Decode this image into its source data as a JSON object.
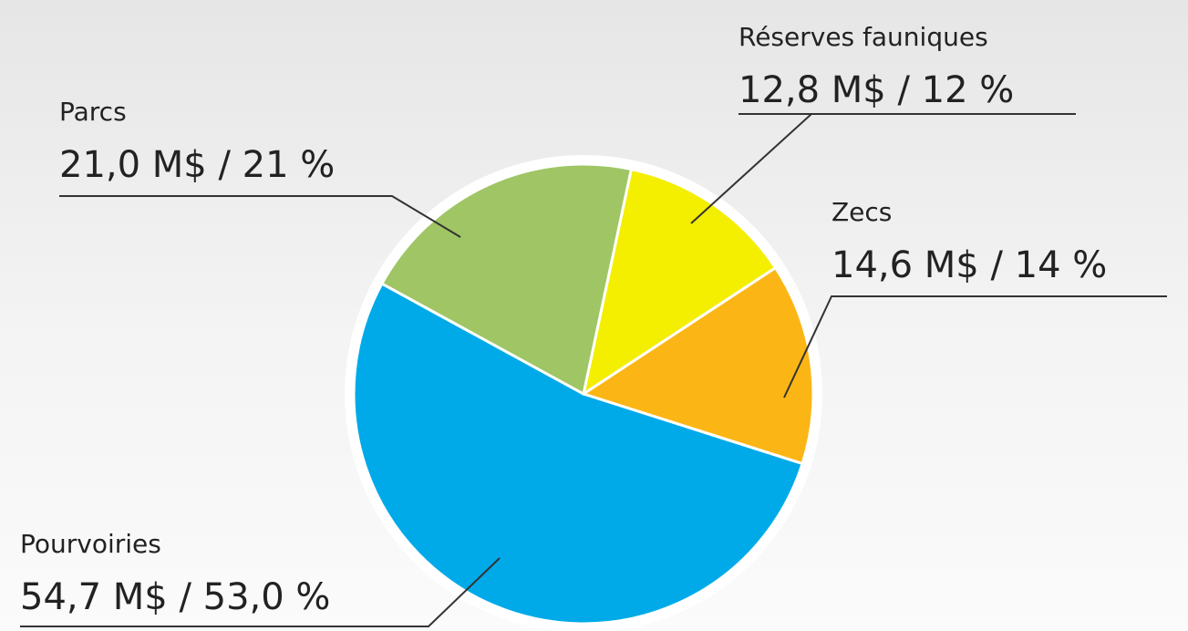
{
  "chart_data": {
    "type": "pie",
    "categories": [
      "Réserves fauniques",
      "Zecs",
      "Pourvoiries",
      "Parcs"
    ],
    "values": [
      12.8,
      14.6,
      54.7,
      21.0
    ],
    "value_labels": [
      "12,8 M$ / 12 %",
      "14,6 M$ / 14 %",
      "54,7 M$ / 53,0 %",
      "21,0 M$ / 21 %"
    ],
    "colors": [
      "#f4ee00",
      "#fbb615",
      "#00aae9",
      "#9fc565"
    ]
  }
}
